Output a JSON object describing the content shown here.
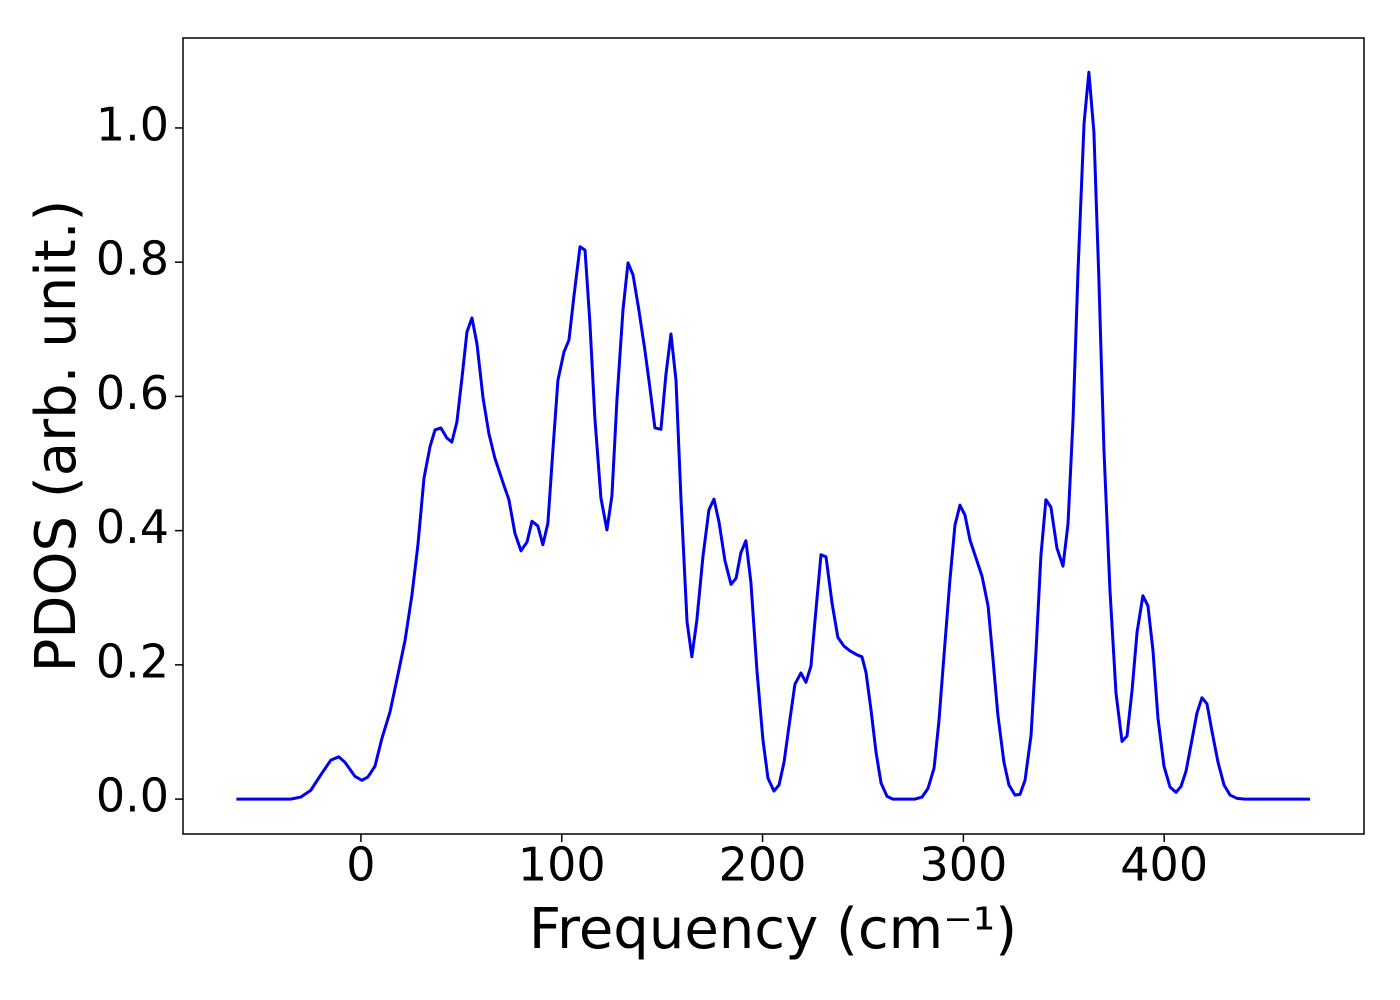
{
  "chart_data": {
    "type": "line",
    "xlabel": "Frequency (cm⁻¹)",
    "ylabel": "PDOS (arb. unit.)",
    "xlim": [
      -88.6,
      499.5
    ],
    "ylim": [
      -0.052,
      1.134
    ],
    "xticks": [
      0,
      100,
      200,
      300,
      400
    ],
    "yticks": [
      {
        "value": 0,
        "label": "0.0"
      },
      0.2,
      0.4,
      0.6,
      0.8,
      {
        "value": 1,
        "label": "1.0"
      }
    ],
    "grid": false,
    "series": [
      {
        "color": "#0000ee",
        "x": [
          -62,
          -35,
          -30,
          -25,
          -20,
          -15,
          -11,
          -8,
          -3,
          0.5,
          3.5,
          7,
          10.5,
          14.5,
          18.4,
          22,
          25.4,
          28.4,
          31.4,
          34.4,
          36.9,
          39.8,
          42.8,
          45.3,
          47.8,
          50.3,
          52.8,
          55.3,
          57.8,
          60.8,
          63.7,
          66.7,
          70.7,
          73.7,
          76.7,
          79.7,
          82.7,
          85.2,
          88.1,
          90.6,
          93.1,
          95.6,
          98.1,
          101.1,
          103.6,
          106.1,
          109.1,
          111.6,
          114.0,
          116.5,
          119.5,
          122.5,
          125.0,
          127.5,
          130.5,
          133.0,
          135.5,
          138.4,
          141.4,
          143.9,
          146.4,
          149.4,
          151.9,
          154.4,
          156.9,
          159.4,
          162.4,
          164.8,
          167.3,
          170.3,
          173.3,
          175.8,
          178.3,
          181.3,
          184.3,
          186.8,
          189.2,
          191.7,
          194.2,
          197.2,
          200.2,
          202.7,
          205.7,
          208.2,
          210.7,
          213.6,
          216.1,
          219.1,
          221.6,
          224.1,
          226.6,
          229.1,
          231.6,
          234.6,
          237.5,
          240.5,
          243.5,
          247.0,
          249.5,
          251.5,
          254.0,
          256.5,
          259.0,
          262.0,
          264.9,
          275.9,
          279.4,
          282.4,
          285.4,
          287.8,
          290.3,
          293.3,
          295.8,
          298.3,
          300.8,
          303.3,
          306.3,
          309.3,
          312.3,
          314.7,
          317.2,
          320.2,
          322.7,
          325.7,
          328.2,
          330.7,
          333.7,
          336.2,
          338.6,
          341.1,
          343.6,
          346.6,
          349.6,
          352.1,
          354.6,
          357.1,
          360.1,
          362.5,
          365.0,
          367.5,
          370.0,
          373.0,
          376.0,
          379.0,
          381.5,
          384.0,
          386.5,
          389.4,
          391.9,
          394.4,
          396.9,
          399.9,
          402.9,
          405.9,
          408.4,
          410.9,
          413.3,
          416.3,
          418.8,
          421.3,
          423.8,
          426.8,
          429.8,
          432.8,
          436.3,
          440.2,
          472.6
        ],
        "values": [
          0,
          0,
          0.003,
          0.013,
          0.036,
          0.058,
          0.063,
          0.055,
          0.034,
          0.028,
          0.033,
          0.049,
          0.091,
          0.13,
          0.185,
          0.237,
          0.304,
          0.379,
          0.478,
          0.525,
          0.55,
          0.553,
          0.538,
          0.532,
          0.562,
          0.627,
          0.696,
          0.717,
          0.678,
          0.598,
          0.545,
          0.508,
          0.472,
          0.446,
          0.396,
          0.37,
          0.383,
          0.414,
          0.407,
          0.379,
          0.411,
          0.52,
          0.624,
          0.666,
          0.684,
          0.75,
          0.823,
          0.818,
          0.711,
          0.568,
          0.449,
          0.401,
          0.452,
          0.595,
          0.729,
          0.799,
          0.781,
          0.729,
          0.669,
          0.613,
          0.553,
          0.551,
          0.633,
          0.693,
          0.624,
          0.446,
          0.264,
          0.212,
          0.267,
          0.361,
          0.431,
          0.447,
          0.413,
          0.355,
          0.32,
          0.329,
          0.367,
          0.385,
          0.323,
          0.192,
          0.088,
          0.031,
          0.012,
          0.021,
          0.055,
          0.118,
          0.171,
          0.188,
          0.174,
          0.198,
          0.282,
          0.364,
          0.361,
          0.292,
          0.241,
          0.228,
          0.221,
          0.215,
          0.212,
          0.189,
          0.133,
          0.07,
          0.024,
          0.004,
          0,
          0,
          0.003,
          0.016,
          0.046,
          0.115,
          0.212,
          0.326,
          0.408,
          0.438,
          0.423,
          0.386,
          0.359,
          0.332,
          0.288,
          0.21,
          0.125,
          0.055,
          0.021,
          0.006,
          0.007,
          0.028,
          0.095,
          0.222,
          0.362,
          0.446,
          0.435,
          0.374,
          0.347,
          0.41,
          0.565,
          0.788,
          1.007,
          1.083,
          0.994,
          0.773,
          0.52,
          0.311,
          0.158,
          0.086,
          0.094,
          0.162,
          0.249,
          0.303,
          0.288,
          0.222,
          0.121,
          0.049,
          0.018,
          0.01,
          0.019,
          0.042,
          0.08,
          0.128,
          0.151,
          0.142,
          0.101,
          0.055,
          0.021,
          0.006,
          0.001,
          0,
          0
        ]
      }
    ]
  }
}
